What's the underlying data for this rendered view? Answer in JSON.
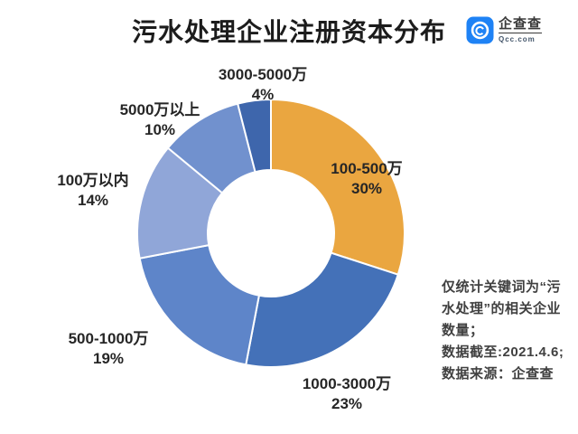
{
  "page": {
    "title": "污水处理企业注册资本分布"
  },
  "logo": {
    "brand": "企查查",
    "domain": "Qcc.com",
    "brand_color": "#1E82F5"
  },
  "chart_data": {
    "type": "pie",
    "subtype": "donut",
    "title": "污水处理企业注册资本分布",
    "unit": "percent",
    "start_angle_deg": 0,
    "start_position": "12-oclock",
    "direction": "clockwise",
    "inner_radius_ratio": 0.47,
    "legend_position": "none",
    "grid": false,
    "segments": [
      {
        "label": "100-500万",
        "value": 30,
        "pct": "30%",
        "color": "#EAA640",
        "label_placement": "inside"
      },
      {
        "label": "1000-3000万",
        "value": 23,
        "pct": "23%",
        "color": "#4471B8",
        "label_placement": "outside-bottom-right"
      },
      {
        "label": "500-1000万",
        "value": 19,
        "pct": "19%",
        "color": "#5E85C9",
        "label_placement": "outside-bottom-left"
      },
      {
        "label": "100万以内",
        "value": 14,
        "pct": "14%",
        "color": "#90A6D8",
        "label_placement": "outside-left"
      },
      {
        "label": "5000万以上",
        "value": 10,
        "pct": "10%",
        "color": "#7191CE",
        "label_placement": "outside-top-left"
      },
      {
        "label": "3000-5000万",
        "value": 4,
        "pct": "4%",
        "color": "#3E66AC",
        "label_placement": "outside-top"
      }
    ]
  },
  "annotation": {
    "lines": [
      "仅统计关键词为“污",
      "水处理”的相关企业",
      "数量；",
      "数据截至:2021.4.6;",
      "数据来源：企查查"
    ]
  }
}
